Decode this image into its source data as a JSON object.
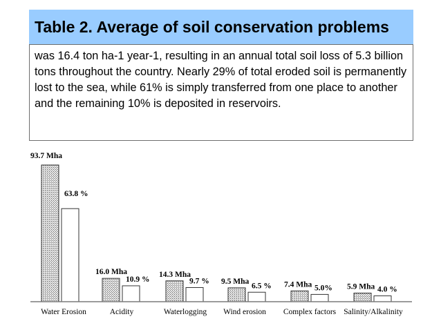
{
  "slide": {
    "title": "Table 2. Average of soil conservation problems",
    "body": "was 16.4 ton ha-1 year-1, resulting in an annual total soil loss of 5.3 billion tons throughout the country. Nearly 29% of total eroded soil is permanently lost to the sea, while 61% is simply transferred from one place to another and the remaining 10% is deposited in reservoirs.",
    "colors": {
      "title_bg": "#99ccff",
      "border": "#6d6d6d"
    }
  },
  "chart_data": {
    "type": "bar",
    "categories": [
      "Water Erosion",
      "Acidity",
      "Waterlogging",
      "Wind erosion",
      "Complex factors",
      "Salinity/Alkalinity"
    ],
    "series": [
      {
        "unit": "Mha",
        "values": [
          93.7,
          16.0,
          14.3,
          9.5,
          7.4,
          5.9
        ],
        "labels": [
          "93.7 Mha",
          "16.0 Mha",
          "14.3 Mha",
          "9.5 Mha",
          "7.4 Mha",
          "5.9 Mha"
        ],
        "pattern": "hatched"
      },
      {
        "unit": "%",
        "values": [
          63.8,
          10.9,
          9.7,
          6.5,
          5.0,
          4.0
        ],
        "labels": [
          "63.8 %",
          "10.9 %",
          "9.7 %",
          "6.5 %",
          "5.0%",
          "4.0 %"
        ],
        "pattern": "plain"
      }
    ],
    "title": "",
    "xlabel": "",
    "ylabel": "",
    "ylim": [
      0,
      93.7
    ],
    "grid": false,
    "legend": "none"
  }
}
